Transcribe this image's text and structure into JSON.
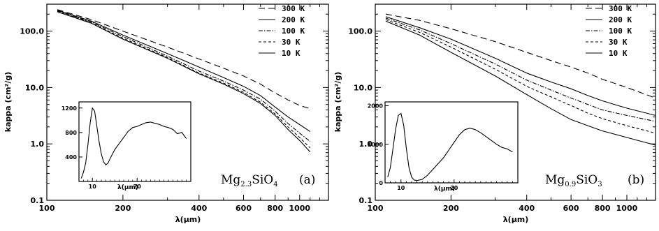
{
  "chart_data": [
    {
      "type": "line",
      "panel_label": "(a)",
      "formula": {
        "base1": "Mg",
        "sub1": "2.3",
        "base2": "SiO",
        "sub2": "4"
      },
      "xlabel": "λ(μm)",
      "ylabel": "kappa (cm²/g)",
      "xscale": "log",
      "yscale": "log",
      "xlim": [
        100,
        1300
      ],
      "ylim": [
        0.1,
        300
      ],
      "x_ticks": [
        100,
        200,
        400,
        600,
        800,
        1000
      ],
      "x_tick_labels": [
        "100",
        "200",
        "400",
        "600",
        "800",
        "1000"
      ],
      "y_ticks": [
        0.1,
        1,
        10,
        100
      ],
      "y_tick_labels": [
        "0.1",
        "1.0",
        "10.0",
        "100.0"
      ],
      "legend_position": "top-right",
      "series": [
        {
          "name": "300 K",
          "style": "long-dash",
          "x": [
            110,
            150,
            200,
            300,
            400,
            500,
            600,
            700,
            800,
            900,
            1000,
            1100
          ],
          "y": [
            240,
            160,
            100,
            52,
            32,
            22,
            16,
            11.5,
            8,
            6,
            4.8,
            4.2
          ]
        },
        {
          "name": "200 K",
          "style": "solid",
          "x": [
            110,
            150,
            200,
            300,
            400,
            500,
            600,
            700,
            800,
            900,
            1000,
            1100
          ],
          "y": [
            235,
            150,
            85,
            40,
            23,
            15,
            10.5,
            7.2,
            4.5,
            3.0,
            2.2,
            1.65
          ]
        },
        {
          "name": "100 K",
          "style": "dash-dot",
          "x": [
            110,
            150,
            200,
            300,
            400,
            500,
            600,
            700,
            800,
            900,
            1000,
            1100
          ],
          "y": [
            230,
            145,
            80,
            36,
            19.5,
            13,
            9,
            6.2,
            3.8,
            2.3,
            1.55,
            1.1
          ]
        },
        {
          "name": "30 K",
          "style": "short-dash",
          "x": [
            110,
            150,
            200,
            300,
            400,
            500,
            600,
            700,
            800,
            900,
            1000,
            1100
          ],
          "y": [
            225,
            140,
            75,
            34,
            18,
            12,
            8.2,
            5.5,
            3.4,
            2.0,
            1.3,
            0.85
          ]
        },
        {
          "name": "10 K",
          "style": "solid",
          "x": [
            110,
            150,
            200,
            300,
            400,
            500,
            600,
            700,
            800,
            900,
            1000,
            1100
          ],
          "y": [
            220,
            138,
            72,
            33,
            17.5,
            11.5,
            7.8,
            5.2,
            3.2,
            1.8,
            1.15,
            0.72
          ]
        }
      ],
      "inset": {
        "xlabel": "λ(μm)",
        "xlim": [
          7,
          32
        ],
        "ylim": [
          0,
          1300
        ],
        "x_ticks": [
          10,
          20
        ],
        "y_ticks": [
          400,
          800,
          1200
        ],
        "x": [
          7.5,
          8,
          8.5,
          9,
          9.5,
          10,
          10.5,
          11,
          11.5,
          12,
          12.5,
          13,
          13.5,
          14,
          14.5,
          15,
          16,
          17,
          18,
          19,
          20,
          21,
          22,
          23,
          24,
          25,
          26,
          27,
          28,
          29,
          30,
          31
        ],
        "y": [
          50,
          150,
          300,
          600,
          950,
          1200,
          1150,
          900,
          650,
          450,
          320,
          270,
          300,
          380,
          450,
          520,
          620,
          720,
          820,
          880,
          900,
          930,
          960,
          970,
          950,
          930,
          900,
          880,
          850,
          780,
          800,
          700
        ]
      }
    },
    {
      "type": "line",
      "panel_label": "(b)",
      "formula": {
        "base1": "Mg",
        "sub1": "0.9",
        "base2": "SiO",
        "sub2": "3"
      },
      "xlabel": "λ(μm)",
      "ylabel": "kappa (cm²/g)",
      "xscale": "log",
      "yscale": "log",
      "xlim": [
        100,
        1300
      ],
      "ylim": [
        0.1,
        300
      ],
      "x_ticks": [
        100,
        200,
        400,
        600,
        800,
        1000
      ],
      "x_tick_labels": [
        "100",
        "200",
        "400",
        "600",
        "800",
        "1000"
      ],
      "y_ticks": [
        0.1,
        1,
        10,
        100
      ],
      "y_tick_labels": [
        "0.1",
        "1.0",
        "10.0",
        "100.0"
      ],
      "legend_position": "top-right",
      "series": [
        {
          "name": "300 K",
          "style": "long-dash",
          "x": [
            110,
            150,
            200,
            300,
            400,
            500,
            600,
            700,
            800,
            1000,
            1300
          ],
          "y": [
            200,
            155,
            110,
            65,
            42,
            30,
            23,
            18,
            14,
            10,
            6.5
          ]
        },
        {
          "name": "200 K",
          "style": "solid",
          "x": [
            110,
            150,
            200,
            300,
            400,
            500,
            600,
            700,
            800,
            1000,
            1300
          ],
          "y": [
            180,
            115,
            72,
            33,
            18,
            12.5,
            9.5,
            7.2,
            5.8,
            4.3,
            3.2
          ]
        },
        {
          "name": "100 K",
          "style": "dash-dot",
          "x": [
            110,
            150,
            200,
            300,
            400,
            500,
            600,
            700,
            800,
            1000,
            1300
          ],
          "y": [
            170,
            105,
            60,
            26,
            13.5,
            9,
            6.5,
            5,
            4,
            3.2,
            2.5
          ]
        },
        {
          "name": "30 K",
          "style": "short-dash",
          "x": [
            110,
            150,
            200,
            300,
            400,
            500,
            600,
            700,
            800,
            1000,
            1300
          ],
          "y": [
            160,
            95,
            52,
            21,
            10.5,
            6.8,
            4.8,
            3.5,
            2.8,
            2.1,
            1.55
          ]
        },
        {
          "name": "10 K",
          "style": "solid",
          "x": [
            110,
            150,
            200,
            300,
            400,
            500,
            600,
            700,
            800,
            1000,
            1300
          ],
          "y": [
            150,
            85,
            42,
            16,
            7.5,
            4.2,
            2.7,
            2.1,
            1.7,
            1.3,
            0.95
          ]
        }
      ],
      "inset": {
        "xlabel": "λ(μm)",
        "xlim": [
          7,
          32
        ],
        "ylim": [
          0,
          2100
        ],
        "x_ticks": [
          10,
          20
        ],
        "y_ticks": [
          0,
          1000,
          2000
        ],
        "x": [
          7.5,
          8,
          8.5,
          9,
          9.5,
          10,
          10.5,
          11,
          11.5,
          12,
          12.5,
          13,
          14,
          15,
          16,
          17,
          18,
          19,
          20,
          21,
          22,
          23,
          24,
          25,
          26,
          27,
          28,
          29,
          30,
          31
        ],
        "y": [
          150,
          400,
          900,
          1400,
          1750,
          1800,
          1500,
          900,
          400,
          150,
          70,
          60,
          90,
          200,
          350,
          500,
          650,
          850,
          1050,
          1250,
          1380,
          1420,
          1380,
          1300,
          1200,
          1100,
          1000,
          920,
          880,
          800
        ]
      }
    }
  ]
}
